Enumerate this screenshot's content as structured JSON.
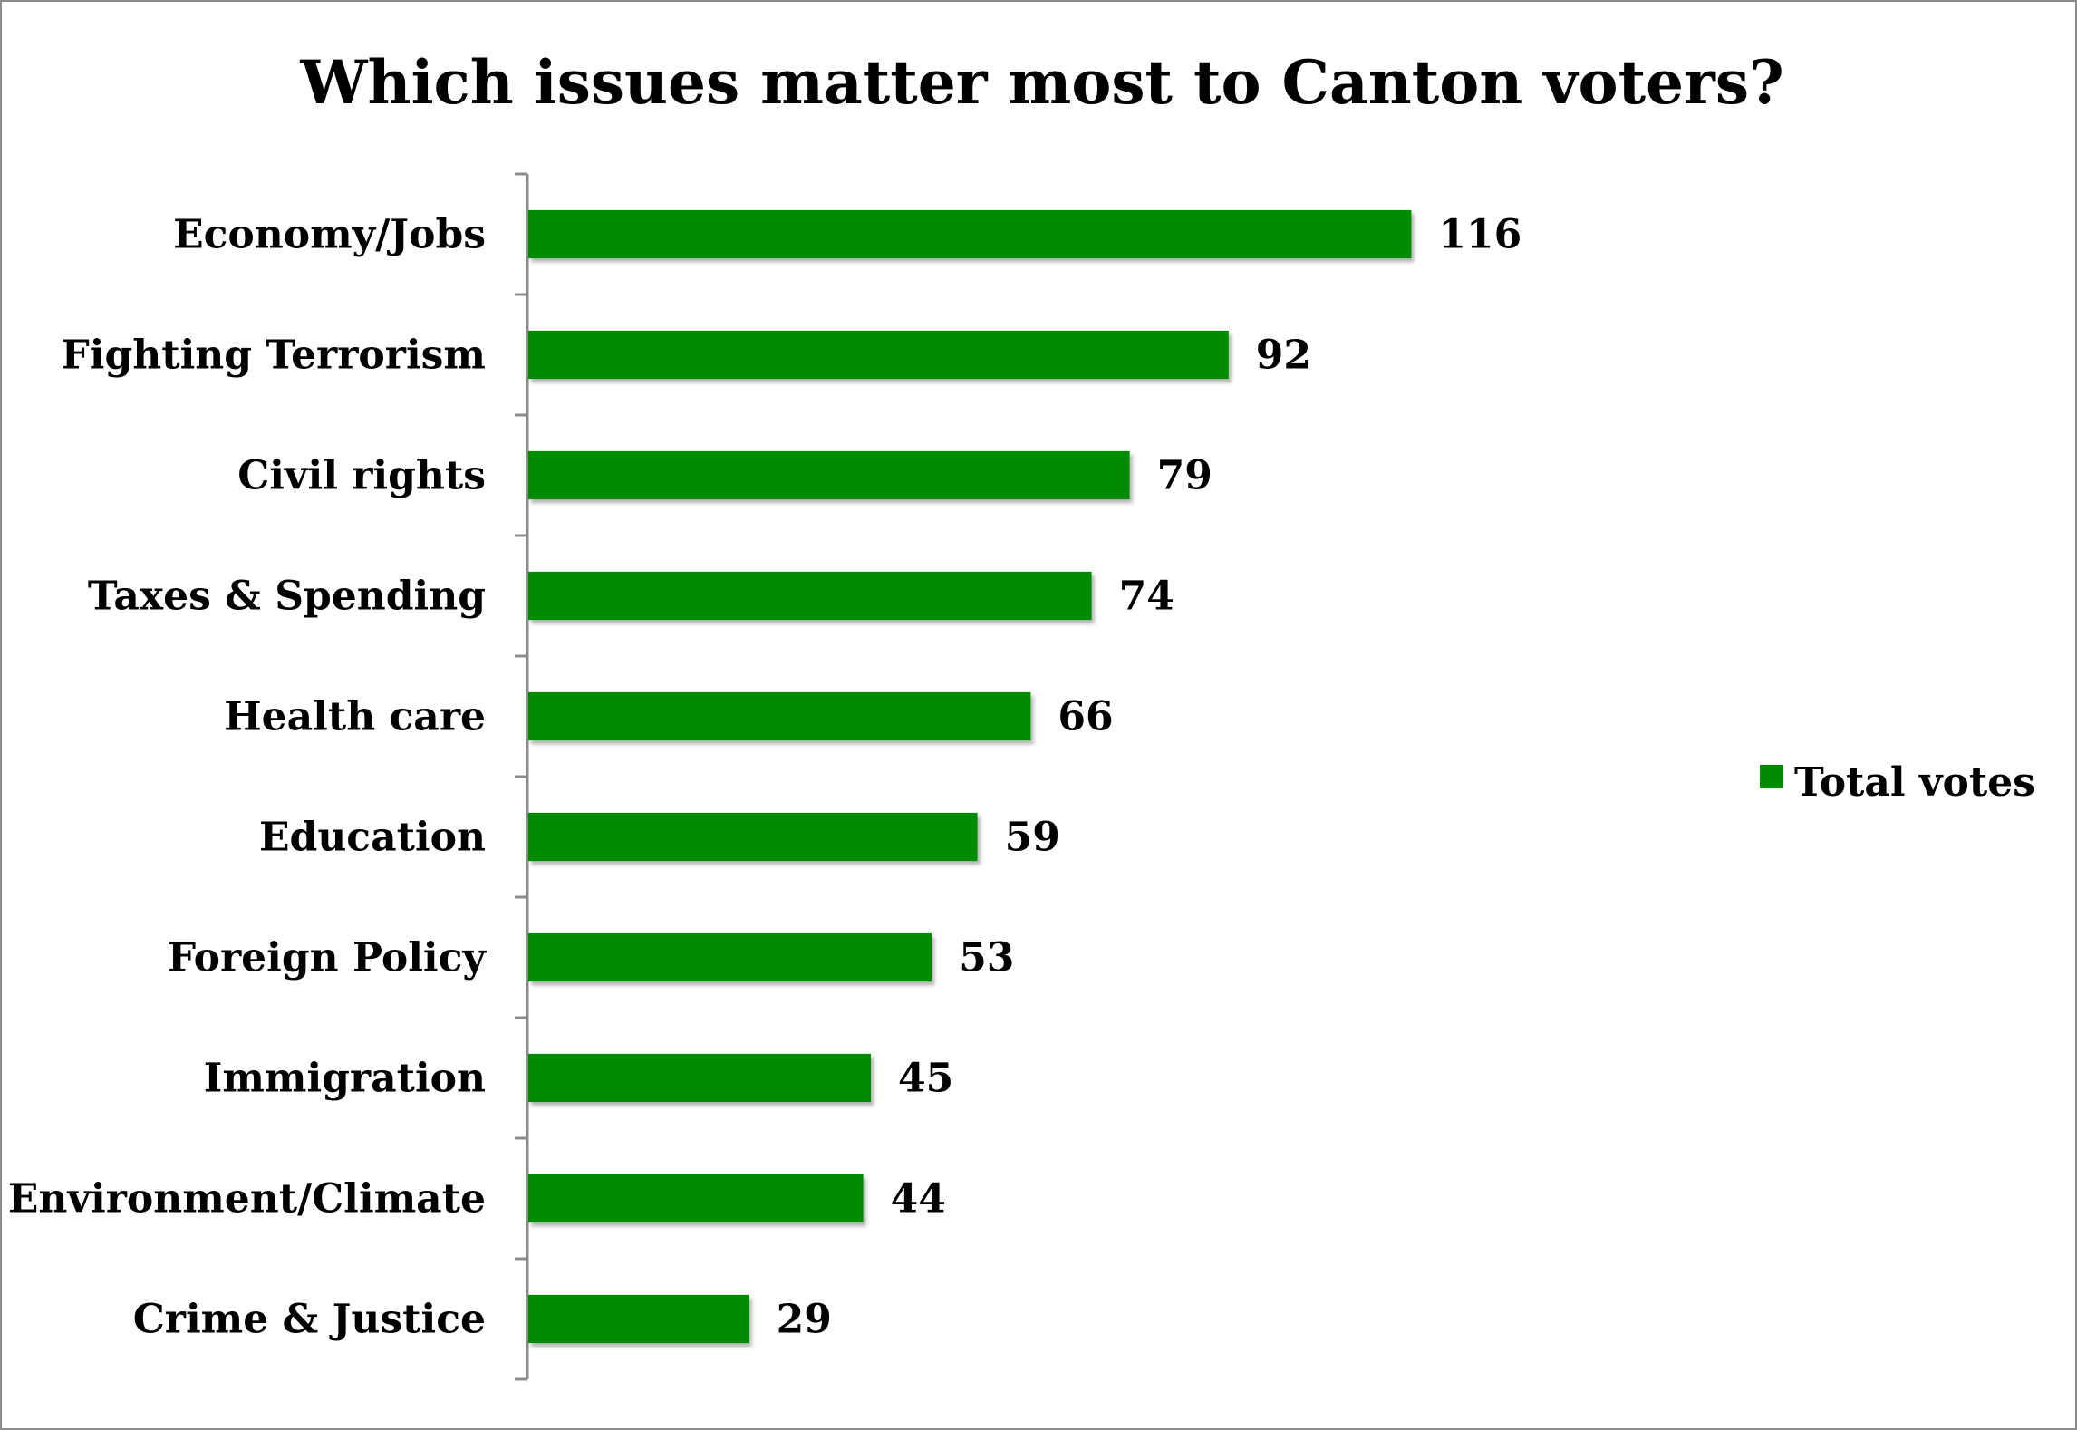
{
  "chart_data": {
    "type": "bar",
    "orientation": "horizontal",
    "title": "Which issues matter most to Canton voters?",
    "categories": [
      "Economy/Jobs",
      "Fighting Terrorism",
      "Civil rights",
      "Taxes & Spending",
      "Health care",
      "Education",
      "Foreign Policy",
      "Immigration",
      "Environment/Climate",
      "Crime & Justice"
    ],
    "series": [
      {
        "name": "Total votes",
        "color": "#008c00",
        "values": [
          116,
          92,
          79,
          74,
          66,
          59,
          53,
          45,
          44,
          29
        ]
      }
    ],
    "data_labels": [
      "116",
      "92",
      "79",
      "74",
      "66",
      "59",
      "53",
      "45",
      "44",
      "29"
    ],
    "xlim": [
      0,
      190
    ],
    "legend_position": "right",
    "grid": false
  }
}
